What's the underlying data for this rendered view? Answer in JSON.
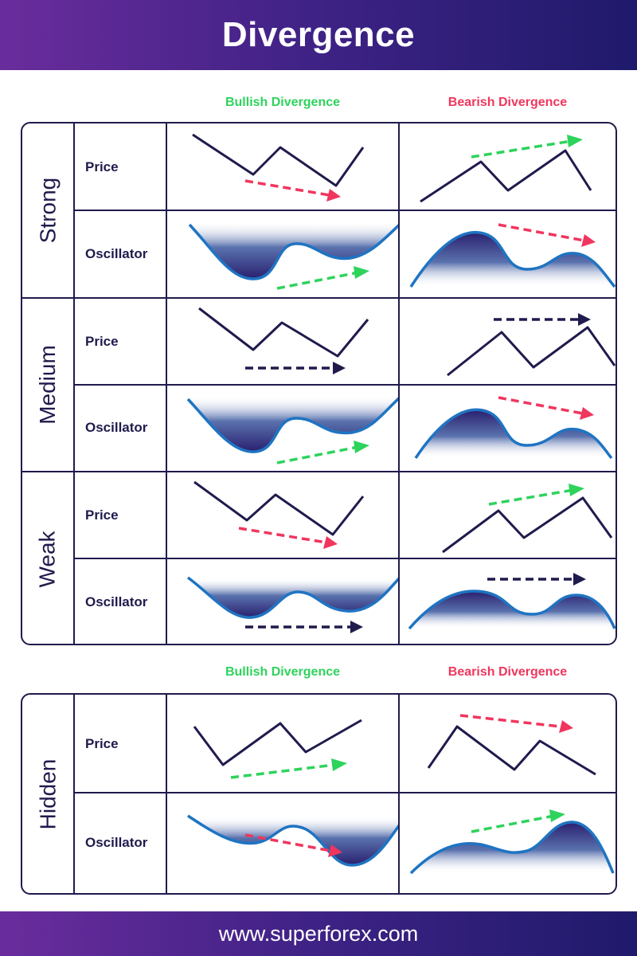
{
  "title": "Divergence",
  "footer": "www.superforex.com",
  "columns": {
    "bullish": "Bullish Divergence",
    "bearish": "Bearish Divergence"
  },
  "row_labels": {
    "price": "Price",
    "oscillator": "Oscillator"
  },
  "groups": [
    "Strong",
    "Medium",
    "Weak"
  ],
  "hidden_group": "Hidden",
  "colors": {
    "bullish": "#2ed35c",
    "bearish": "#f0365e",
    "line": "#1f1b4d",
    "oscillator_line": "#1f74c2",
    "oscillator_fill_dark": "#2a1f6e",
    "header_start": "#6a2c9c",
    "header_end": "#1f1a6b"
  },
  "arrow_directions": {
    "strong": {
      "bull_price": "down",
      "bull_osc": "up",
      "bear_price": "up",
      "bear_osc": "down"
    },
    "medium": {
      "bull_price": "flat",
      "bull_osc": "up",
      "bear_price": "flat",
      "bear_osc": "down"
    },
    "weak": {
      "bull_price": "down",
      "bull_osc": "flat",
      "bear_price": "up",
      "bear_osc": "flat"
    },
    "hidden": {
      "bull_price": "up",
      "bull_osc": "down",
      "bear_price": "down",
      "bear_osc": "up"
    }
  }
}
